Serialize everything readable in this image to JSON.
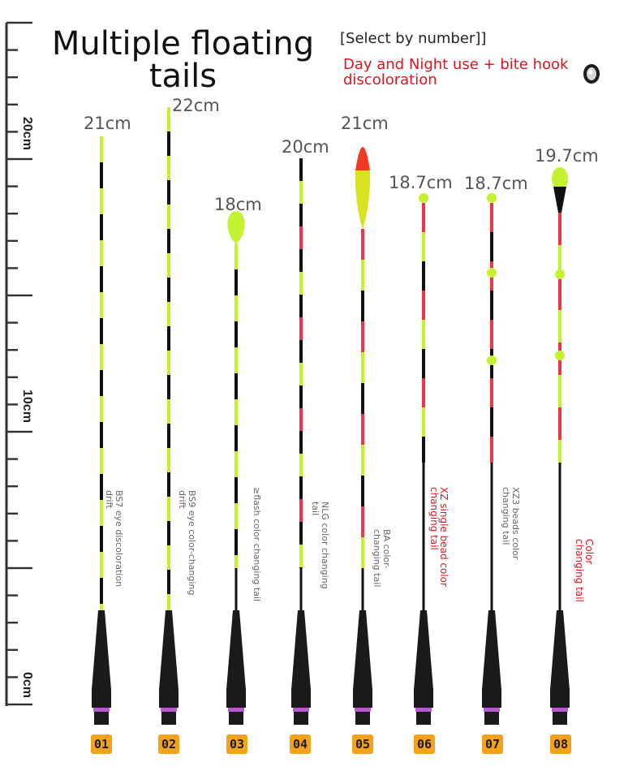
{
  "title": "Multiple floating tails",
  "select_hint": "[Select by number]]",
  "feature_note": "Day and Night use + bite hook discoloration",
  "ruler": {
    "labels": [
      "20cm",
      "10cm",
      "0cm"
    ]
  },
  "floats": [
    {
      "number": "01",
      "length": "21cm",
      "name": "BS7 eye discoloration drift"
    },
    {
      "number": "02",
      "length": "22cm",
      "name": "BS9 eye color-changing drift"
    },
    {
      "number": "03",
      "length": "18cm",
      "name": "≥flash color changing tail"
    },
    {
      "number": "04",
      "length": "20cm",
      "name": "NLG color changing tail"
    },
    {
      "number": "05",
      "length": "21cm",
      "name": "BA color-changing tail"
    },
    {
      "number": "06",
      "length": "18.7cm",
      "name": "XZ single bead color changing tail"
    },
    {
      "number": "07",
      "length": "18.7cm",
      "name": "XZ3 beads color changing tail"
    },
    {
      "number": "08",
      "length": "19.7cm",
      "name": "Color changing tail"
    }
  ],
  "colors": {
    "accent_red": "#e0141e",
    "badge": "#f5a21b",
    "green": "#c3f230",
    "black": "#111111",
    "red": "#f0354a"
  },
  "icons": {
    "eye": "eye-bead-icon"
  }
}
